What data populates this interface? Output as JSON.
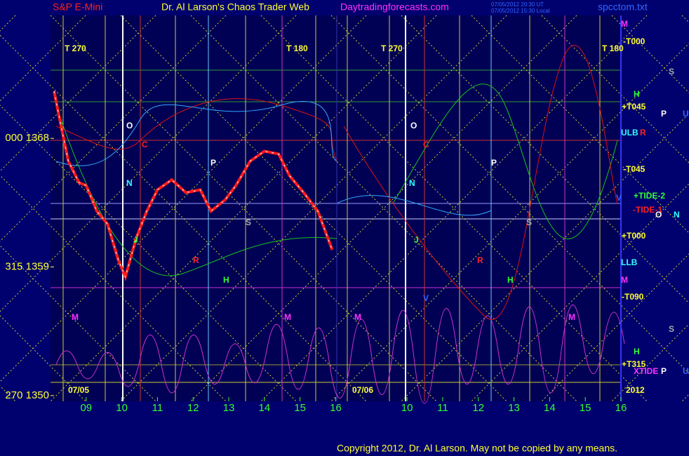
{
  "header": {
    "title_left": "S&P E-Mini",
    "title_main": "Dr. Al Larson's Chaos Trader Web",
    "site": "Daytradingforecasts.com",
    "stamp1": "07/05/2012 20:30 UT",
    "stamp2": "07/05/2012 15:30 Local",
    "file": "spcctom.txt"
  },
  "chart_data": {
    "type": "line",
    "x": [
      8.1,
      8.3,
      8.5,
      8.8,
      9.0,
      9.3,
      9.6,
      9.9,
      10.1,
      10.4,
      10.7,
      11.0,
      11.4,
      11.8,
      12.2,
      12.5,
      12.9,
      13.2,
      13.6,
      14.0,
      14.4,
      14.7,
      15.1,
      15.5,
      15.9
    ],
    "series": [
      {
        "name": "S&P E-Mini",
        "color": "#ff1a1a",
        "values": [
          1371.3,
          1368.8,
          1366.4,
          1364.9,
          1364.7,
          1362.9,
          1362,
          1359.5,
          1358.3,
          1361,
          1362.9,
          1364.4,
          1365.1,
          1364.2,
          1364.4,
          1362.9,
          1363.7,
          1364.7,
          1366.4,
          1367.1,
          1366.9,
          1365.4,
          1364.2,
          1362.9,
          1360.2
        ]
      }
    ],
    "xlim": [
      8,
      24
    ],
    "xticks": [
      {
        "value": 9,
        "label": "09"
      },
      10,
      11,
      12,
      13,
      14,
      15,
      16,
      {
        "value": 18,
        "label": "10"
      },
      {
        "value": 19,
        "label": "11"
      },
      {
        "value": 20,
        "label": "12"
      },
      {
        "value": 21,
        "label": "13"
      },
      {
        "value": 22,
        "label": "14"
      },
      {
        "value": 23,
        "label": "15"
      },
      {
        "value": 24,
        "label": "16"
      }
    ],
    "ylim": [
      1349.6,
      1376.6
    ],
    "yticks": [
      {
        "value": 1368,
        "label": "000  1368"
      },
      {
        "value": 1359,
        "label": "315  1359"
      },
      {
        "value": 1350,
        "label": "270  1350"
      }
    ],
    "annotations": [
      "T  270",
      "T  180",
      "T  270",
      "T  180",
      "O",
      "C",
      "N",
      "P",
      "S",
      "J",
      "R",
      "H",
      "M",
      "M",
      "M",
      "O",
      "C",
      "N",
      "P",
      "S",
      "J",
      "R",
      "H",
      "V",
      "M",
      "07/05",
      "07/06",
      "2012"
    ],
    "right_labels": [
      "M",
      "-T000",
      "S",
      "H",
      "+T045",
      "P",
      "U",
      "ULB",
      "R",
      "-T045",
      "+TIDE-2",
      "-TIDE-1",
      "V",
      "O",
      "N",
      "+T000",
      "LLB",
      "M",
      "-T090",
      "S",
      "H",
      "+T315",
      "XTIDE",
      "P",
      "U"
    ]
  },
  "footer": {
    "copyright": "Copyright 2012, Dr. Al Larson. May not be copied by any means."
  }
}
